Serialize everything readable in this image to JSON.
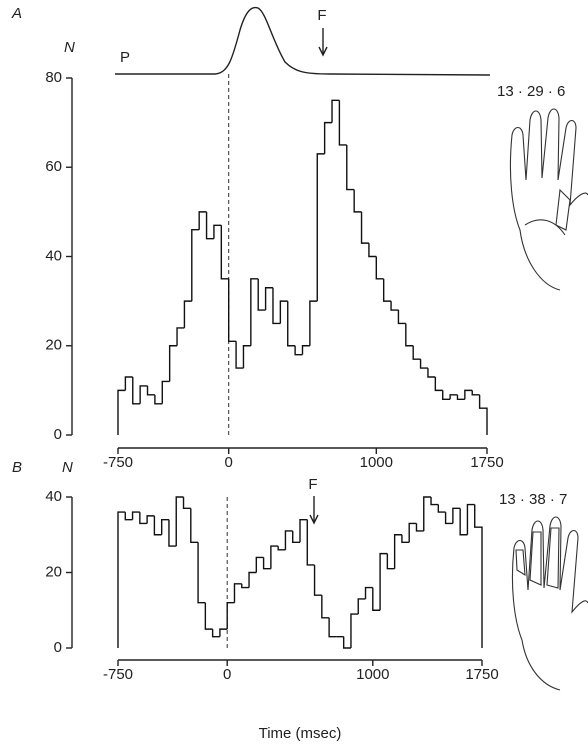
{
  "chart_data": [
    {
      "type": "histogram",
      "panel": "A",
      "y_label": "N",
      "trace_label": "P",
      "annotation": "F",
      "side_text": "13 · 29 · 6",
      "bins": [
        -750,
        -700,
        -650,
        -600,
        -550,
        -500,
        -450,
        -400,
        -350,
        -300,
        -250,
        -200,
        -150,
        -100,
        -50,
        0,
        50,
        100,
        150,
        200,
        250,
        300,
        350,
        400,
        450,
        500,
        550,
        600,
        650,
        700,
        750,
        800,
        850,
        900,
        950,
        1000,
        1050,
        1100,
        1150,
        1200,
        1250,
        1300,
        1350,
        1400,
        1450,
        1500,
        1550,
        1600,
        1650,
        1700,
        1750
      ],
      "values": [
        10,
        13,
        7,
        11,
        9,
        7,
        12,
        20,
        24,
        30,
        46,
        50,
        44,
        47,
        35,
        21,
        15,
        20,
        35,
        28,
        33,
        25,
        30,
        20,
        18,
        20,
        30,
        63,
        70,
        75,
        65,
        55,
        50,
        43,
        40,
        35,
        30,
        28,
        25,
        20,
        17,
        15,
        13,
        10,
        8,
        9,
        8,
        10,
        9,
        6
      ],
      "xlim": [
        -750,
        1750
      ],
      "xticks": [
        -750,
        0,
        1000,
        1750
      ],
      "ylim": [
        0,
        80
      ],
      "yticks": [
        0,
        20,
        40,
        60,
        80
      ]
    },
    {
      "type": "histogram",
      "panel": "B",
      "y_label": "N",
      "annotation": "F",
      "side_text": "13 · 38 · 7",
      "x_label": "Time (msec)",
      "bins": [
        -750,
        -700,
        -650,
        -600,
        -550,
        -500,
        -450,
        -400,
        -350,
        -300,
        -250,
        -200,
        -150,
        -100,
        -50,
        0,
        50,
        100,
        150,
        200,
        250,
        300,
        350,
        400,
        450,
        500,
        550,
        600,
        650,
        700,
        750,
        800,
        850,
        900,
        950,
        1000,
        1050,
        1100,
        1150,
        1200,
        1250,
        1300,
        1350,
        1400,
        1450,
        1500,
        1550,
        1600,
        1650,
        1700,
        1750
      ],
      "values": [
        36,
        34,
        36,
        33,
        35,
        30,
        34,
        27,
        40,
        37,
        28,
        12,
        5,
        3,
        5,
        12,
        17,
        16,
        20,
        24,
        21,
        27,
        26,
        31,
        28,
        34,
        22,
        14,
        8,
        3,
        3,
        0,
        9,
        13,
        16,
        10,
        25,
        21,
        30,
        28,
        33,
        31,
        40,
        38,
        36,
        33,
        37,
        30,
        38,
        32
      ],
      "xlim": [
        -750,
        1750
      ],
      "xticks": [
        -750,
        0,
        1000,
        1750
      ],
      "ylim": [
        0,
        40
      ],
      "yticks": [
        0,
        20,
        40
      ]
    }
  ]
}
